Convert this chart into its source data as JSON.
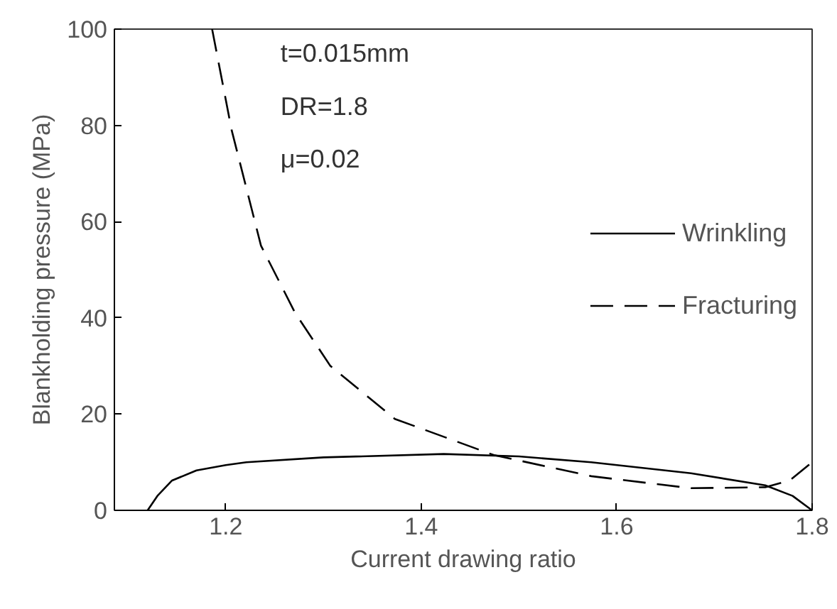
{
  "chart_data": {
    "type": "line",
    "xlabel": "Current drawing ratio",
    "ylabel": "Blankholding pressure (MPa)",
    "xlim": [
      1.086,
      1.8
    ],
    "ylim": [
      0,
      100
    ],
    "xticks": [
      1.2,
      1.4,
      1.6,
      1.8
    ],
    "yticks": [
      0,
      20,
      40,
      60,
      80,
      100
    ],
    "grid": false,
    "legend": "right",
    "marker": "none",
    "annotations": [
      "t=0.015mm",
      "DR=1.8",
      "μ=0.02"
    ],
    "series": [
      {
        "name": "Wrinkling",
        "color": "#000000",
        "line_style": "solid",
        "x": [
          1.12,
          1.13,
          1.145,
          1.17,
          1.2,
          1.221,
          1.3,
          1.423,
          1.5,
          1.574,
          1.676,
          1.752,
          1.78,
          1.8
        ],
        "values": [
          0,
          3,
          6.2,
          8.3,
          9.4,
          10,
          11,
          11.7,
          11.2,
          10,
          7.7,
          5.2,
          3,
          0
        ]
      },
      {
        "name": "Fracturing",
        "color": "#000000",
        "line_style": "dashed",
        "x": [
          1.186,
          1.206,
          1.236,
          1.271,
          1.307,
          1.373,
          1.474,
          1.574,
          1.676,
          1.752,
          1.777,
          1.8
        ],
        "values": [
          100,
          79,
          55,
          41,
          30,
          19,
          11.5,
          7.1,
          4.6,
          4.8,
          6.2,
          10
        ]
      }
    ]
  }
}
